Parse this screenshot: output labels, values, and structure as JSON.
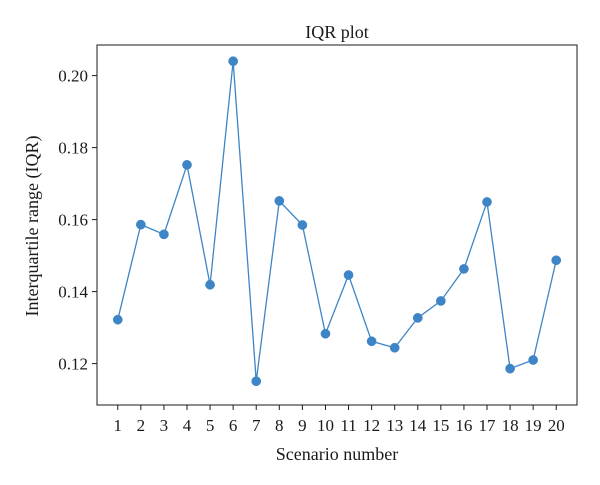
{
  "chart_data": {
    "type": "line",
    "title": "IQR plot",
    "xlabel": "Scenario number",
    "ylabel": "Interquartile range (IQR)",
    "x": [
      1,
      2,
      3,
      4,
      5,
      6,
      7,
      8,
      9,
      10,
      11,
      12,
      13,
      14,
      15,
      16,
      17,
      18,
      19,
      20
    ],
    "xticks": [
      "1",
      "2",
      "3",
      "4",
      "5",
      "6",
      "7",
      "8",
      "9",
      "10",
      "11",
      "12",
      "13",
      "14",
      "15",
      "16",
      "17",
      "18",
      "19",
      "20"
    ],
    "yticks": [
      "0.12",
      "0.14",
      "0.16",
      "0.18",
      "0.20"
    ],
    "ytick_values": [
      0.12,
      0.14,
      0.16,
      0.18,
      0.2
    ],
    "series": [
      {
        "values": [
          0.1322,
          0.1586,
          0.1559,
          0.1752,
          0.1419,
          0.204,
          0.1151,
          0.1652,
          0.1585,
          0.1283,
          0.1446,
          0.1262,
          0.1244,
          0.1327,
          0.1374,
          0.1463,
          0.1649,
          0.1186,
          0.121,
          0.1487
        ],
        "color": "#3d85c6"
      }
    ],
    "xlim": [
      0.1,
      20.9
    ],
    "ylim": [
      0.1085,
      0.2085
    ],
    "grid": false,
    "legend": "none"
  }
}
